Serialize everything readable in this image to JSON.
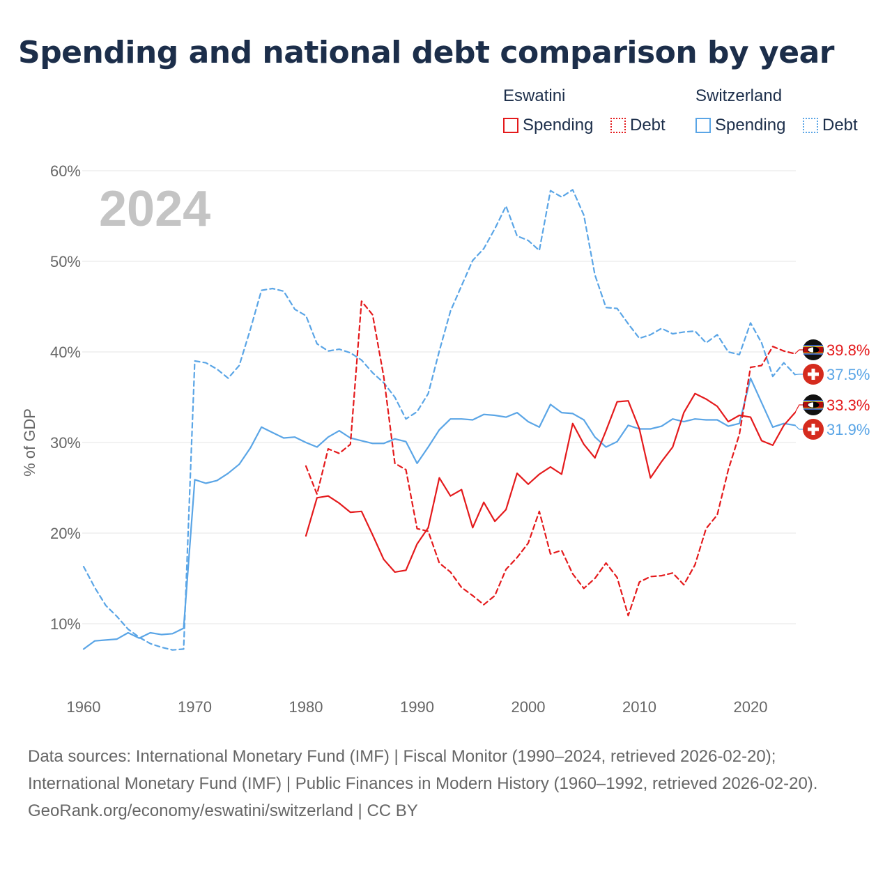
{
  "title": "Spending and national debt comparison by year",
  "legend": {
    "eswatini": {
      "name": "Eswatini",
      "spending": "Spending",
      "debt": "Debt"
    },
    "switzerland": {
      "name": "Switzerland",
      "spending": "Spending",
      "debt": "Debt"
    }
  },
  "year_overlay": "2024",
  "colors": {
    "eswatini": "#e41a1c",
    "switzerland": "#5aa5e6",
    "grid": "#e6e6e6",
    "axis_text": "#666666",
    "year_overlay": "#c4c4c4"
  },
  "footer": {
    "sources": "Data sources: International Monetary Fund (IMF) | Fiscal Monitor (1990–2024, retrieved 2026-02-20); International Monetary Fund (IMF) | Public Finances in Modern History (1960–1992, retrieved 2026-02-20).",
    "credit": "GeoRank.org/economy/eswatini/switzerland | CC BY"
  },
  "chart_data": {
    "type": "line",
    "title": "Spending and national debt comparison by year",
    "xlabel": "",
    "ylabel": "% of GDP",
    "xlim": [
      1960,
      2024
    ],
    "ylim": [
      3,
      60
    ],
    "x_ticks": [
      1960,
      1970,
      1980,
      1990,
      2000,
      2010,
      2020
    ],
    "y_ticks": [
      10,
      20,
      30,
      40,
      50,
      60
    ],
    "y_tick_labels": [
      "10%",
      "20%",
      "30%",
      "40%",
      "50%",
      "60%"
    ],
    "grid": true,
    "legend_position": "top-right",
    "end_labels": [
      {
        "series": "Eswatini Debt",
        "label": "39.8%",
        "flag": "Eswatini"
      },
      {
        "series": "Switzerland Debt",
        "label": "37.5%",
        "flag": "Switzerland"
      },
      {
        "series": "Eswatini Spending",
        "label": "33.3%",
        "flag": "Eswatini"
      },
      {
        "series": "Switzerland Spending",
        "label": "31.9%",
        "flag": "Switzerland"
      }
    ],
    "series": [
      {
        "name": "Eswatini Spending",
        "country": "Eswatini",
        "measure": "Spending",
        "style": "solid",
        "color": "#e41a1c",
        "x": [
          1980,
          1981,
          1982,
          1983,
          1984,
          1985,
          1986,
          1987,
          1988,
          1989,
          1990,
          1991,
          1992,
          1993,
          1994,
          1995,
          1996,
          1997,
          1998,
          1999,
          2000,
          2001,
          2002,
          2003,
          2004,
          2005,
          2006,
          2007,
          2008,
          2009,
          2010,
          2011,
          2012,
          2013,
          2014,
          2015,
          2016,
          2017,
          2018,
          2019,
          2020,
          2021,
          2022,
          2023,
          2024
        ],
        "values": [
          19.7,
          23.9,
          24.1,
          23.3,
          22.3,
          22.4,
          19.8,
          17.1,
          15.7,
          15.9,
          18.8,
          20.6,
          26.1,
          24.1,
          24.8,
          20.6,
          23.4,
          21.3,
          22.6,
          26.6,
          25.4,
          26.5,
          27.3,
          26.5,
          32.1,
          29.8,
          28.3,
          31.3,
          34.5,
          34.6,
          31.5,
          26.1,
          27.9,
          29.5,
          33.3,
          35.4,
          34.8,
          34.0,
          32.3,
          33.0,
          32.8,
          30.2,
          29.7,
          31.9,
          33.3
        ]
      },
      {
        "name": "Eswatini Debt",
        "country": "Eswatini",
        "measure": "Debt",
        "style": "dashed",
        "color": "#e41a1c",
        "x": [
          1980,
          1981,
          1982,
          1983,
          1984,
          1985,
          1986,
          1987,
          1988,
          1989,
          1990,
          1991,
          1992,
          1993,
          1994,
          1995,
          1996,
          1997,
          1998,
          1999,
          2000,
          2001,
          2002,
          2003,
          2004,
          2005,
          2006,
          2007,
          2008,
          2009,
          2010,
          2011,
          2012,
          2013,
          2014,
          2015,
          2016,
          2017,
          2018,
          2019,
          2020,
          2021,
          2022,
          2023,
          2024
        ],
        "values": [
          27.4,
          24.3,
          29.3,
          28.8,
          29.8,
          45.6,
          44.1,
          37.3,
          27.7,
          27.0,
          20.5,
          20.2,
          16.7,
          15.7,
          14.0,
          13.1,
          12.1,
          13.1,
          16.0,
          17.3,
          18.9,
          22.4,
          17.7,
          18.1,
          15.5,
          13.9,
          15.0,
          16.7,
          15.1,
          10.9,
          14.6,
          15.2,
          15.3,
          15.6,
          14.3,
          16.5,
          20.5,
          22.0,
          27.0,
          30.9,
          38.3,
          38.5,
          40.6,
          40.1,
          39.8
        ]
      },
      {
        "name": "Switzerland Spending",
        "country": "Switzerland",
        "measure": "Spending",
        "style": "solid",
        "color": "#5aa5e6",
        "x": [
          1960,
          1961,
          1962,
          1963,
          1964,
          1965,
          1966,
          1967,
          1968,
          1969,
          1970,
          1971,
          1972,
          1973,
          1974,
          1975,
          1976,
          1977,
          1978,
          1979,
          1980,
          1981,
          1982,
          1983,
          1984,
          1985,
          1986,
          1987,
          1988,
          1989,
          1990,
          1991,
          1992,
          1993,
          1994,
          1995,
          1996,
          1997,
          1998,
          1999,
          2000,
          2001,
          2002,
          2003,
          2004,
          2005,
          2006,
          2007,
          2008,
          2009,
          2010,
          2011,
          2012,
          2013,
          2014,
          2015,
          2016,
          2017,
          2018,
          2019,
          2020,
          2021,
          2022,
          2023,
          2024
        ],
        "values": [
          7.2,
          8.1,
          8.2,
          8.3,
          9.0,
          8.4,
          9.0,
          8.8,
          8.9,
          9.5,
          25.9,
          25.5,
          25.8,
          26.6,
          27.6,
          29.4,
          31.7,
          31.1,
          30.5,
          30.6,
          30.0,
          29.5,
          30.6,
          31.3,
          30.5,
          30.2,
          29.9,
          29.9,
          30.4,
          30.1,
          27.7,
          29.5,
          31.4,
          32.6,
          32.6,
          32.5,
          33.1,
          33.0,
          32.8,
          33.3,
          32.3,
          31.7,
          34.2,
          33.3,
          33.2,
          32.5,
          30.6,
          29.5,
          30.1,
          31.9,
          31.5,
          31.5,
          31.8,
          32.6,
          32.3,
          32.6,
          32.5,
          32.5,
          31.8,
          32.1,
          37.1,
          34.4,
          31.7,
          32.1,
          31.9
        ]
      },
      {
        "name": "Switzerland Debt",
        "country": "Switzerland",
        "measure": "Debt",
        "style": "dashed",
        "color": "#5aa5e6",
        "x": [
          1960,
          1961,
          1962,
          1963,
          1964,
          1965,
          1966,
          1967,
          1968,
          1969,
          1970,
          1971,
          1972,
          1973,
          1974,
          1975,
          1976,
          1977,
          1978,
          1979,
          1980,
          1981,
          1982,
          1983,
          1984,
          1985,
          1986,
          1987,
          1988,
          1989,
          1990,
          1991,
          1992,
          1993,
          1994,
          1995,
          1996,
          1997,
          1998,
          1999,
          2000,
          2001,
          2002,
          2003,
          2004,
          2005,
          2006,
          2007,
          2008,
          2009,
          2010,
          2011,
          2012,
          2013,
          2014,
          2015,
          2016,
          2017,
          2018,
          2019,
          2020,
          2021,
          2022,
          2023,
          2024
        ],
        "values": [
          16.3,
          14.0,
          12.0,
          10.8,
          9.4,
          8.5,
          7.8,
          7.4,
          7.1,
          7.2,
          39.0,
          38.8,
          38.1,
          37.1,
          38.5,
          42.5,
          46.8,
          47.0,
          46.7,
          44.7,
          44.0,
          40.9,
          40.1,
          40.3,
          39.9,
          39.1,
          37.7,
          36.6,
          35.0,
          32.6,
          33.4,
          35.4,
          40.1,
          44.5,
          47.3,
          50.1,
          51.4,
          53.6,
          56.1,
          52.8,
          52.3,
          51.2,
          57.8,
          57.1,
          57.9,
          55.1,
          48.5,
          44.9,
          44.8,
          43.1,
          41.5,
          41.9,
          42.6,
          42.0,
          42.2,
          42.3,
          41.0,
          41.9,
          40.0,
          39.7,
          43.2,
          41.0,
          37.3,
          38.8,
          37.5
        ]
      }
    ]
  }
}
